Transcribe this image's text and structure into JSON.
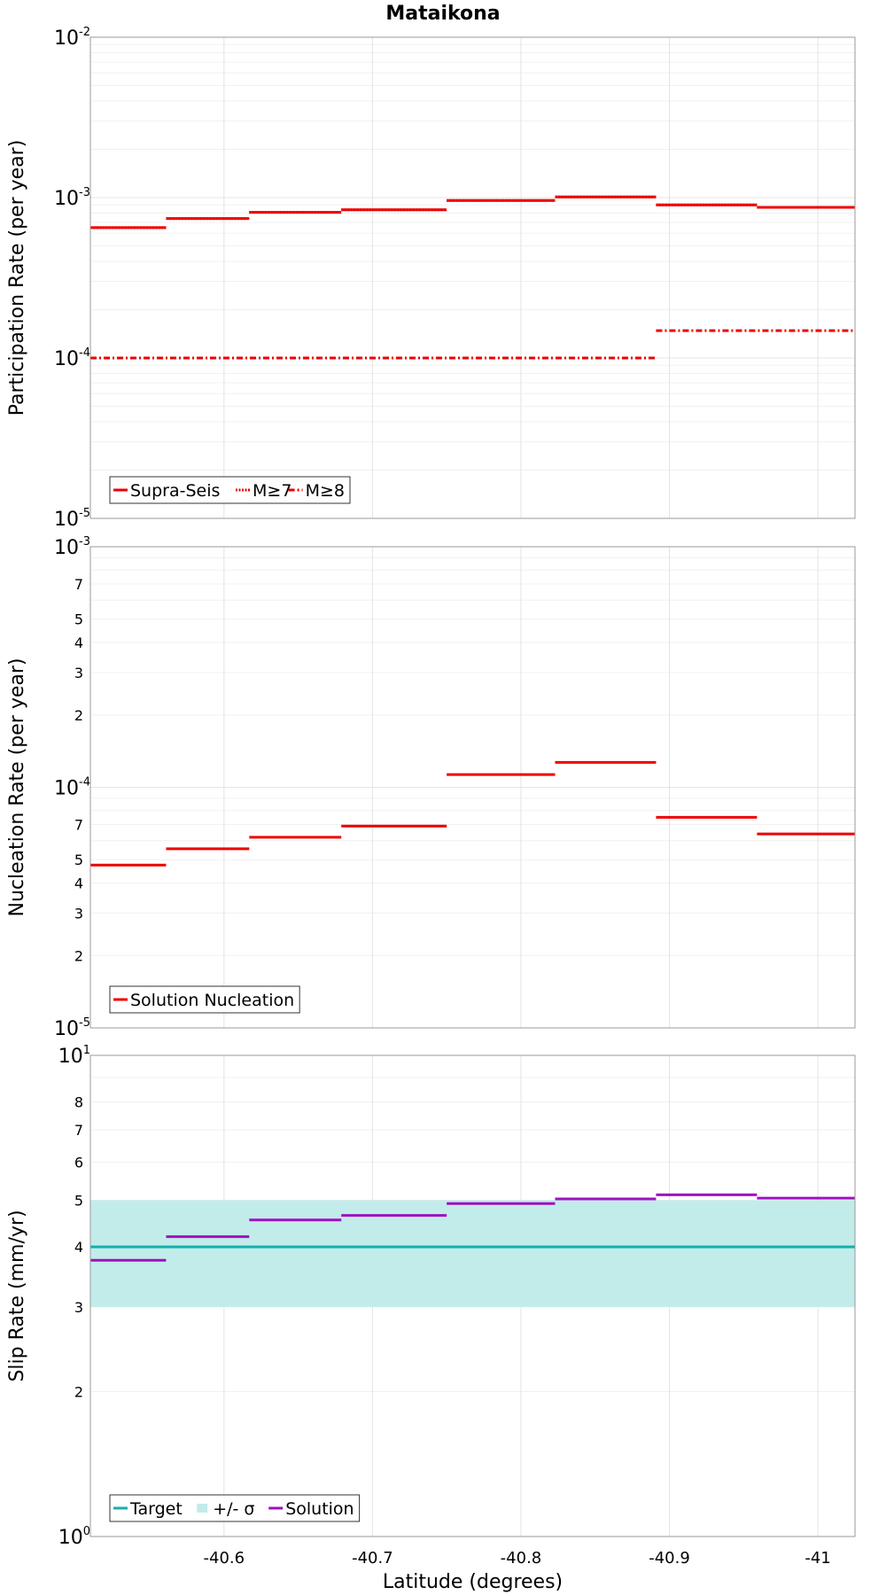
{
  "title": "Mataikona",
  "chart_data": [
    {
      "type": "line",
      "ylabel": "Participation Rate (per year)",
      "xlabel": "",
      "yscale": "log",
      "ylim": [
        1e-05,
        0.01
      ],
      "ylim_exponents": [
        -5,
        -2
      ],
      "xlim": [
        -40.51,
        -41.025
      ],
      "xticks": [
        -40.6,
        -40.7,
        -40.8,
        -40.9,
        -41
      ],
      "xtick_labels": [
        "-40.6",
        "-40.7",
        "-40.8",
        "-40.9",
        "-41"
      ],
      "show_xtick_labels": false,
      "minor_tick_labels": [],
      "grid": true,
      "legend_position": "bottom-left",
      "series": [
        {
          "name": "Supra-Seis",
          "color": "#ee0000",
          "style": "solid",
          "steps": [
            {
              "x0": -40.51,
              "x1": -40.561,
              "y": 0.00065
            },
            {
              "x0": -40.561,
              "x1": -40.617,
              "y": 0.00074
            },
            {
              "x0": -40.617,
              "x1": -40.679,
              "y": 0.00081
            },
            {
              "x0": -40.679,
              "x1": -40.75,
              "y": 0.00084
            },
            {
              "x0": -40.75,
              "x1": -40.823,
              "y": 0.00096
            },
            {
              "x0": -40.823,
              "x1": -40.891,
              "y": 0.00101
            },
            {
              "x0": -40.891,
              "x1": -40.959,
              "y": 0.0009
            },
            {
              "x0": -40.959,
              "x1": -41.025,
              "y": 0.00087
            }
          ]
        },
        {
          "name": "M≥7",
          "color": "#ee0000",
          "style": "dotted",
          "steps": [
            {
              "x0": -40.51,
              "x1": -40.561,
              "y": 0.00065
            },
            {
              "x0": -40.561,
              "x1": -40.617,
              "y": 0.00074
            },
            {
              "x0": -40.617,
              "x1": -40.679,
              "y": 0.00081
            },
            {
              "x0": -40.679,
              "x1": -40.75,
              "y": 0.00084
            },
            {
              "x0": -40.75,
              "x1": -40.823,
              "y": 0.00096
            },
            {
              "x0": -40.823,
              "x1": -40.891,
              "y": 0.00101
            },
            {
              "x0": -40.891,
              "x1": -40.959,
              "y": 0.0009
            },
            {
              "x0": -40.959,
              "x1": -41.025,
              "y": 0.00087
            }
          ]
        },
        {
          "name": "M≥8",
          "color": "#ee0000",
          "style": "dashdot",
          "steps": [
            {
              "x0": -40.51,
              "x1": -40.891,
              "y": 0.0001
            },
            {
              "x0": -40.891,
              "x1": -41.025,
              "y": 0.000148
            }
          ]
        }
      ]
    },
    {
      "type": "line",
      "ylabel": "Nucleation Rate (per year)",
      "xlabel": "",
      "yscale": "log",
      "ylim": [
        1e-05,
        0.001
      ],
      "ylim_exponents": [
        -5,
        -3
      ],
      "xlim": [
        -40.51,
        -41.025
      ],
      "xticks": [
        -40.6,
        -40.7,
        -40.8,
        -40.9,
        -41
      ],
      "xtick_labels": [
        "-40.6",
        "-40.7",
        "-40.8",
        "-40.9",
        "-41"
      ],
      "show_xtick_labels": false,
      "minor_tick_labels": [
        "2",
        "3",
        "4",
        "5",
        "7"
      ],
      "grid": true,
      "legend_position": "bottom-left",
      "series": [
        {
          "name": "Solution Nucleation",
          "color": "#ee0000",
          "style": "solid",
          "steps": [
            {
              "x0": -40.51,
              "x1": -40.561,
              "y": 4.75e-05
            },
            {
              "x0": -40.561,
              "x1": -40.617,
              "y": 5.55e-05
            },
            {
              "x0": -40.617,
              "x1": -40.679,
              "y": 6.2e-05
            },
            {
              "x0": -40.679,
              "x1": -40.75,
              "y": 6.9e-05
            },
            {
              "x0": -40.75,
              "x1": -40.823,
              "y": 0.000113
            },
            {
              "x0": -40.823,
              "x1": -40.891,
              "y": 0.000127
            },
            {
              "x0": -40.891,
              "x1": -40.959,
              "y": 7.5e-05
            },
            {
              "x0": -40.959,
              "x1": -41.025,
              "y": 6.4e-05
            }
          ]
        }
      ]
    },
    {
      "type": "line",
      "ylabel": "Slip Rate (mm/yr)",
      "xlabel": "Latitude (degrees)",
      "yscale": "log",
      "ylim": [
        1,
        10
      ],
      "ylim_exponents": [
        0,
        1
      ],
      "xlim": [
        -40.51,
        -41.025
      ],
      "xticks": [
        -40.6,
        -40.7,
        -40.8,
        -40.9,
        -41
      ],
      "xtick_labels": [
        "-40.6",
        "-40.7",
        "-40.8",
        "-40.9",
        "-41"
      ],
      "show_xtick_labels": true,
      "minor_tick_labels": [
        "2",
        "3",
        "4",
        "5",
        "6",
        "7",
        "8"
      ],
      "grid": true,
      "legend_position": "bottom-left",
      "band": {
        "name": "+/- σ",
        "color": "#c2ecea",
        "low": 3.0,
        "high": 5.0
      },
      "series": [
        {
          "name": "Target",
          "color": "#14b0aa",
          "style": "solid",
          "steps": [
            {
              "x0": -40.51,
              "x1": -41.025,
              "y": 4.0
            }
          ]
        },
        {
          "name": "Solution",
          "color": "#a010c0",
          "style": "solid",
          "steps": [
            {
              "x0": -40.51,
              "x1": -40.561,
              "y": 3.75
            },
            {
              "x0": -40.561,
              "x1": -40.617,
              "y": 4.2
            },
            {
              "x0": -40.617,
              "x1": -40.679,
              "y": 4.55
            },
            {
              "x0": -40.679,
              "x1": -40.75,
              "y": 4.65
            },
            {
              "x0": -40.75,
              "x1": -40.823,
              "y": 4.92
            },
            {
              "x0": -40.823,
              "x1": -40.891,
              "y": 5.03
            },
            {
              "x0": -40.891,
              "x1": -40.959,
              "y": 5.13
            },
            {
              "x0": -40.959,
              "x1": -41.025,
              "y": 5.05
            }
          ]
        }
      ],
      "legend_order": [
        "Target",
        "+/- σ",
        "Solution"
      ]
    }
  ]
}
